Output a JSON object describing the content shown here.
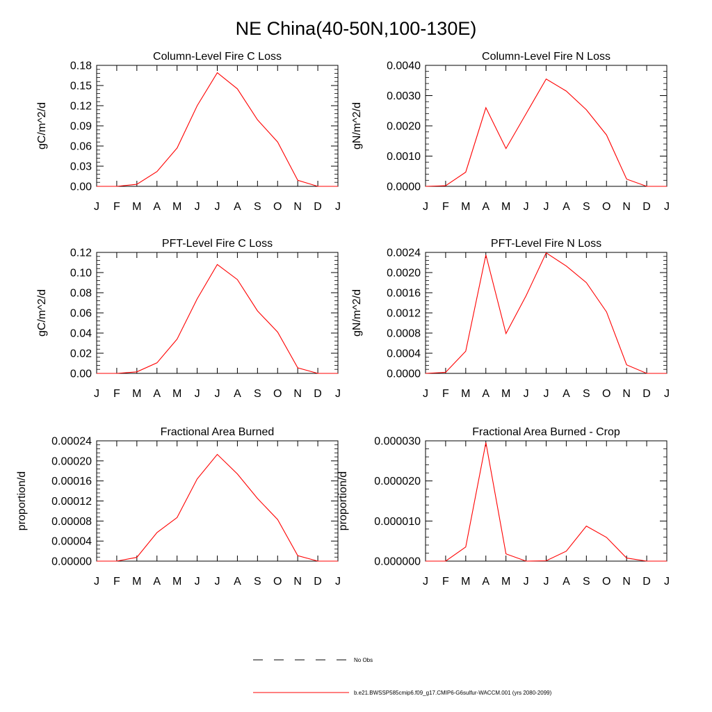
{
  "figure": {
    "title": "NE China(40-50N,100-130E)",
    "legend": {
      "placement": "bottom-center",
      "items": [
        {
          "label": "No Obs",
          "style": "dashed",
          "color": "#000000"
        },
        {
          "label": "b.e21.BWSSP585cmip6.f09_g17.CMIP6-G6sulfur-WACCM.001 (yrs 2080-2099)",
          "style": "solid",
          "color": "#ff0000"
        }
      ]
    }
  },
  "chart_data": [
    {
      "type": "line",
      "title": "Column-Level Fire C Loss",
      "ylabel": "gC/m^2/d",
      "ylim": [
        0,
        0.18
      ],
      "yticks": [
        "0.00",
        "0.03",
        "0.06",
        "0.09",
        "0.12",
        "0.15",
        "0.18"
      ],
      "x": [
        "J",
        "F",
        "M",
        "A",
        "M",
        "J",
        "J",
        "A",
        "S",
        "O",
        "N",
        "D",
        "J"
      ],
      "series": [
        {
          "color": "#ff0000",
          "values": [
            0.0,
            0.0,
            0.003,
            0.022,
            0.057,
            0.12,
            0.169,
            0.145,
            0.099,
            0.066,
            0.009,
            0.0,
            0.0
          ]
        }
      ]
    },
    {
      "type": "line",
      "title": "Column-Level Fire N Loss",
      "ylabel": "gN/m^2/d",
      "ylim": [
        0,
        0.004
      ],
      "yticks": [
        "0.0000",
        "0.0010",
        "0.0020",
        "0.0030",
        "0.0040"
      ],
      "x": [
        "J",
        "F",
        "M",
        "A",
        "M",
        "J",
        "J",
        "A",
        "S",
        "O",
        "N",
        "D",
        "J"
      ],
      "series": [
        {
          "color": "#ff0000",
          "values": [
            0.0,
            2e-05,
            0.00047,
            0.0026,
            0.00125,
            0.0024,
            0.00355,
            0.00315,
            0.00253,
            0.0017,
            0.00024,
            0.0,
            0.0
          ]
        }
      ]
    },
    {
      "type": "line",
      "title": "PFT-Level Fire C Loss",
      "ylabel": "gC/m^2/d",
      "ylim": [
        0,
        0.12
      ],
      "yticks": [
        "0.00",
        "0.02",
        "0.04",
        "0.06",
        "0.08",
        "0.10",
        "0.12"
      ],
      "x": [
        "J",
        "F",
        "M",
        "A",
        "M",
        "J",
        "J",
        "A",
        "S",
        "O",
        "N",
        "D",
        "J"
      ],
      "series": [
        {
          "color": "#ff0000",
          "values": [
            0.0,
            0.0,
            0.0015,
            0.0105,
            0.034,
            0.074,
            0.108,
            0.093,
            0.062,
            0.041,
            0.0055,
            0.0,
            0.0
          ]
        }
      ]
    },
    {
      "type": "line",
      "title": "PFT-Level Fire N Loss",
      "ylabel": "gN/m^2/d",
      "ylim": [
        0,
        0.0024
      ],
      "yticks": [
        "0.0000",
        "0.0004",
        "0.0008",
        "0.0012",
        "0.0016",
        "0.0020",
        "0.0024"
      ],
      "x": [
        "J",
        "F",
        "M",
        "A",
        "M",
        "J",
        "J",
        "A",
        "S",
        "O",
        "N",
        "D",
        "J"
      ],
      "series": [
        {
          "color": "#ff0000",
          "values": [
            0.0,
            2e-05,
            0.00044,
            0.00235,
            0.00079,
            0.00154,
            0.00239,
            0.00213,
            0.0018,
            0.00122,
            0.00017,
            0.0,
            0.0
          ]
        }
      ]
    },
    {
      "type": "line",
      "title": "Fractional Area Burned",
      "ylabel": "proportion/d",
      "ylim": [
        0,
        0.00024
      ],
      "yticks": [
        "0.00000",
        "0.00004",
        "0.00008",
        "0.00012",
        "0.00016",
        "0.00020",
        "0.00024"
      ],
      "x": [
        "J",
        "F",
        "M",
        "A",
        "M",
        "J",
        "J",
        "A",
        "S",
        "O",
        "N",
        "D",
        "J"
      ],
      "series": [
        {
          "color": "#ff0000",
          "values": [
            0.0,
            0.0,
            7.5e-06,
            5.7e-05,
            8.7e-05,
            0.000164,
            0.000213,
            0.000174,
            0.000125,
            8.3e-05,
            1.1e-05,
            0.0,
            0.0
          ]
        }
      ]
    },
    {
      "type": "line",
      "title": "Fractional Area Burned - Crop",
      "ylabel": "proportion/d",
      "ylim": [
        0,
        3.5e-05
      ],
      "yticks": [
        "0.000000",
        "0.000010",
        "0.000020",
        "0.000030"
      ],
      "x": [
        "J",
        "F",
        "M",
        "A",
        "M",
        "J",
        "J",
        "A",
        "S",
        "O",
        "N",
        "D",
        "J"
      ],
      "series": [
        {
          "color": "#ff0000",
          "values": [
            0.0,
            0.0,
            4.1e-06,
            3.45e-05,
            2.1e-06,
            0.0,
            1e-07,
            2.9e-06,
            1.02e-05,
            6.9e-06,
            9e-07,
            0.0,
            0.0
          ]
        }
      ]
    }
  ]
}
